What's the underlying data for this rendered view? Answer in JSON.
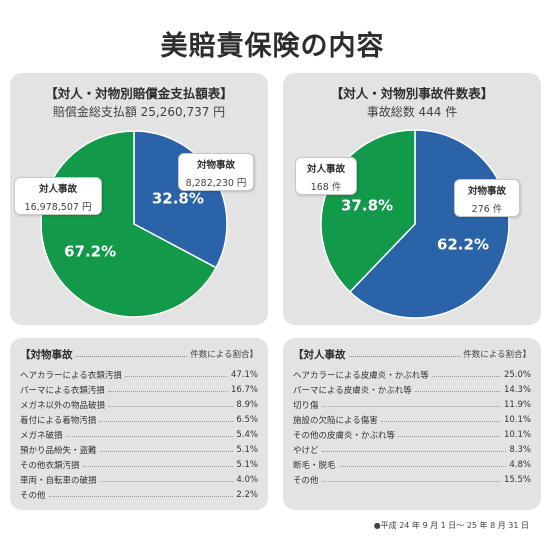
{
  "title": "美賠責保険の内容",
  "colors": {
    "green": "#129a4a",
    "blue": "#2b63a8",
    "panel": "#e3e3e3"
  },
  "chart_data": [
    {
      "type": "pie",
      "title": "【対人・対物別賠償金支払額表】",
      "subtitle": "賠償金総支払額 25,260,737 円",
      "slices": [
        {
          "name": "対物事故",
          "value": 8282230,
          "display": "8,282,230 円",
          "percent": "32.8%",
          "color": "#2b63a8"
        },
        {
          "name": "対人事故",
          "value": 16978507,
          "display": "16,978,507 円",
          "percent": "67.2%",
          "color": "#129a4a"
        }
      ]
    },
    {
      "type": "pie",
      "title": "【対人・対物別事故件数表】",
      "subtitle": "事故総数 444 件",
      "slices": [
        {
          "name": "対物事故",
          "value": 276,
          "display": "276 件",
          "percent": "62.2%",
          "color": "#2b63a8"
        },
        {
          "name": "対人事故",
          "value": 168,
          "display": "168 件",
          "percent": "37.8%",
          "color": "#129a4a"
        }
      ]
    }
  ],
  "lists": [
    {
      "title": "【対物事故",
      "note": "件数による割合】",
      "rows": [
        {
          "label": "ヘアカラーによる衣類汚損",
          "value": "47.1%"
        },
        {
          "label": "パーマによる衣類汚損",
          "value": "16.7%"
        },
        {
          "label": "メガネ以外の物品破損",
          "value": "8.9%"
        },
        {
          "label": "着付による着物汚損",
          "value": "6.5%"
        },
        {
          "label": "メガネ破損",
          "value": "5.4%"
        },
        {
          "label": "預かり品紛失・盗難",
          "value": "5.1%"
        },
        {
          "label": "その他衣類汚損",
          "value": "5.1%"
        },
        {
          "label": "車両・自転車の破損",
          "value": "4.0%"
        },
        {
          "label": "その他",
          "value": "2.2%"
        }
      ]
    },
    {
      "title": "【対人事故",
      "note": "件数による割合】",
      "rows": [
        {
          "label": "ヘアカラーによる皮膚炎・かぶれ等",
          "value": "25.0%"
        },
        {
          "label": "パーマによる皮膚炎・かぶれ等",
          "value": "14.3%"
        },
        {
          "label": "切り傷",
          "value": "11.9%"
        },
        {
          "label": "施設の欠陥による傷害",
          "value": "10.1%"
        },
        {
          "label": "その他の皮膚炎・かぶれ等",
          "value": "10.1%"
        },
        {
          "label": "やけど",
          "value": "8.3%"
        },
        {
          "label": "断毛・脱毛",
          "value": "4.8%"
        },
        {
          "label": "その他",
          "value": "15.5%"
        }
      ]
    }
  ],
  "footnote": "●平成 24 年 9 月 1 日～ 25 年 8 月 31 日"
}
